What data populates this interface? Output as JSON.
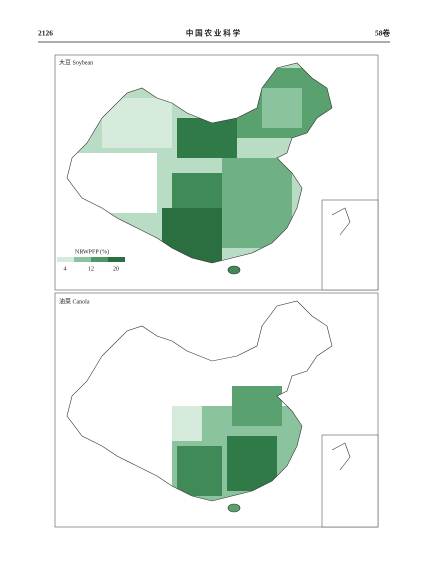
{
  "header": {
    "page_number": "2126",
    "journal": "中 国 农 业 科 学",
    "volume": "58卷"
  },
  "maps": [
    {
      "label": "大豆 Soybean",
      "legend": {
        "title": "NRWPFP (%)",
        "ticks": [
          "4",
          "12",
          "20"
        ]
      }
    },
    {
      "label": "油菜 Canola"
    }
  ]
}
